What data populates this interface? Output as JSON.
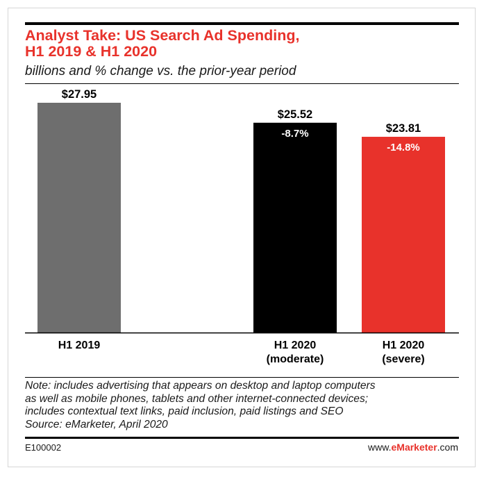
{
  "title_lines": [
    "Analyst Take: US Search Ad Spending,",
    "H1 2019 & H1 2020"
  ],
  "subtitle": "billions and % change vs. the prior-year period",
  "chart_data": {
    "type": "bar",
    "categories": [
      "H1 2019",
      "H1 2020 (moderate)",
      "H1 2020 (severe)"
    ],
    "category_lines": [
      [
        "H1 2019"
      ],
      [
        "H1 2020",
        "(moderate)"
      ],
      [
        "H1 2020",
        "(severe)"
      ]
    ],
    "values": [
      27.95,
      25.52,
      23.81
    ],
    "value_labels": [
      "$27.95",
      "$25.52",
      "$23.81"
    ],
    "change_labels": [
      "",
      "-8.7%",
      "-14.8%"
    ],
    "colors": [
      "#6e6e6e",
      "#000000",
      "#e8322b"
    ],
    "ylim": [
      0,
      27.95
    ],
    "grid": false
  },
  "note_lines": [
    "Note: includes advertising that appears on desktop and laptop computers",
    "as well as mobile phones, tablets and other internet-connected devices;",
    "includes contextual text links, paid inclusion, paid listings and SEO",
    "Source: eMarketer, April 2020"
  ],
  "footer": {
    "id": "E100002",
    "site_prefix": "www.",
    "site_brand": "eMarketer",
    "site_suffix": ".com"
  }
}
